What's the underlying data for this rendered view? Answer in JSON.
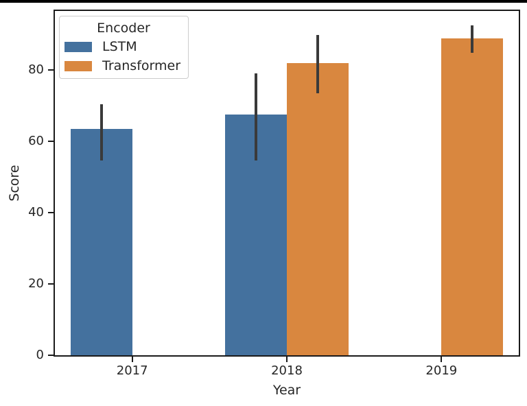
{
  "page": {
    "background": "#ffffff",
    "top_border_color": "#000000"
  },
  "chart_data": {
    "type": "bar",
    "title": "",
    "xlabel": "Year",
    "ylabel": "Score",
    "categories": [
      "2017",
      "2018",
      "2019"
    ],
    "series": [
      {
        "name": "LSTM",
        "color": "#44719e",
        "values": [
          63.5,
          67.5,
          null
        ],
        "error_low": [
          54.5,
          54.6,
          null
        ],
        "error_high": [
          70.4,
          79.0,
          null
        ]
      },
      {
        "name": "Transformer",
        "color": "#d9873f",
        "values": [
          null,
          81.8,
          88.9
        ],
        "error_low": [
          null,
          73.4,
          84.7
        ],
        "error_high": [
          null,
          89.7,
          92.5
        ]
      }
    ],
    "yticks": [
      0,
      20,
      40,
      60,
      80
    ],
    "ylim": [
      0,
      96.5
    ],
    "legend_title": "Encoder",
    "legend_position": "upper left",
    "grid": false,
    "error_bar_color": "#3a3a3a",
    "spine_color": "#1a1a1a",
    "group_width": 0.8,
    "bar_width": 0.4
  }
}
